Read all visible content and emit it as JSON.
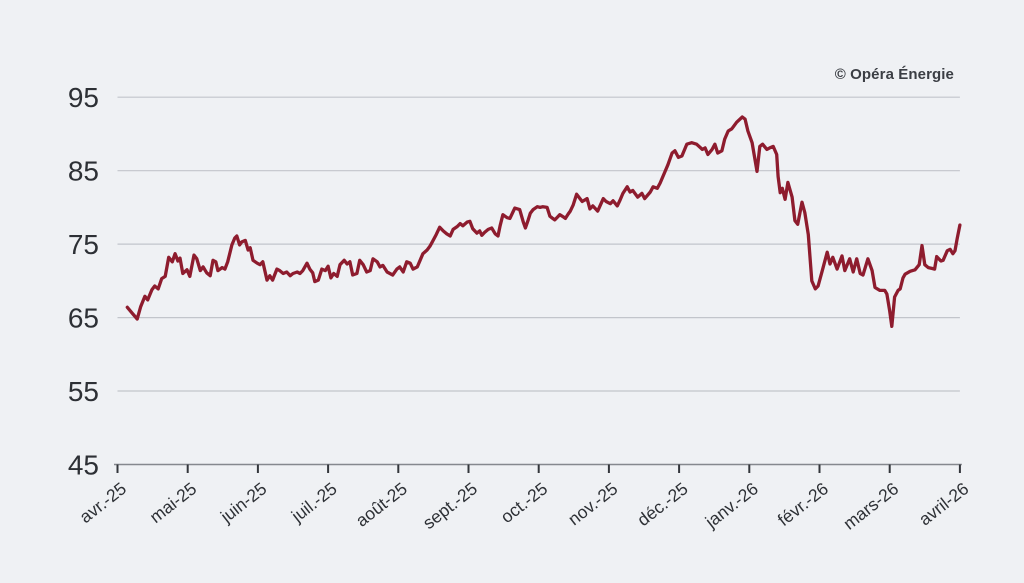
{
  "chart_data": {
    "type": "line",
    "title": "",
    "legend": "none",
    "grid": "horizontal",
    "categories": [
      "avr.-25",
      "mai-25",
      "juin-25",
      "juil.-25",
      "août-25",
      "sept.-25",
      "oct.-25",
      "nov.-25",
      "déc.-25",
      "janv.-26",
      "févr.-26",
      "mars-26",
      "avril-26"
    ],
    "y_tick_labels": [
      95,
      85,
      75,
      65,
      55,
      45
    ],
    "y_gridlines": [
      95,
      85,
      75,
      65,
      55
    ],
    "ylim": [
      45,
      97
    ],
    "xlim_months": [
      0,
      12
    ],
    "annotations": {
      "copyright": "© Opéra Énergie"
    },
    "colors": {
      "line": "#8e1c2e",
      "grid": "#c2c5cb",
      "axis": "#85888e",
      "tick": "#33363b",
      "label": "#2d3035",
      "background": "#eff1f4"
    },
    "points": [
      [
        0.14,
        66.4
      ],
      [
        0.21,
        65.6
      ],
      [
        0.28,
        64.8
      ],
      [
        0.33,
        66.5
      ],
      [
        0.39,
        67.9
      ],
      [
        0.43,
        67.4
      ],
      [
        0.49,
        68.8
      ],
      [
        0.53,
        69.3
      ],
      [
        0.58,
        68.9
      ],
      [
        0.63,
        70.3
      ],
      [
        0.68,
        70.6
      ],
      [
        0.73,
        73.2
      ],
      [
        0.78,
        72.6
      ],
      [
        0.82,
        73.7
      ],
      [
        0.86,
        72.7
      ],
      [
        0.89,
        73.1
      ],
      [
        0.93,
        71.0
      ],
      [
        0.99,
        71.5
      ],
      [
        1.03,
        70.6
      ],
      [
        1.09,
        73.5
      ],
      [
        1.13,
        73.0
      ],
      [
        1.18,
        71.4
      ],
      [
        1.22,
        71.9
      ],
      [
        1.27,
        71.1
      ],
      [
        1.32,
        70.7
      ],
      [
        1.36,
        72.8
      ],
      [
        1.4,
        72.6
      ],
      [
        1.43,
        71.4
      ],
      [
        1.49,
        71.8
      ],
      [
        1.53,
        71.6
      ],
      [
        1.57,
        72.6
      ],
      [
        1.63,
        74.9
      ],
      [
        1.67,
        75.8
      ],
      [
        1.7,
        76.1
      ],
      [
        1.74,
        74.9
      ],
      [
        1.77,
        75.3
      ],
      [
        1.82,
        75.5
      ],
      [
        1.86,
        74.2
      ],
      [
        1.89,
        74.5
      ],
      [
        1.93,
        72.8
      ],
      [
        1.99,
        72.4
      ],
      [
        2.03,
        72.2
      ],
      [
        2.07,
        72.6
      ],
      [
        2.13,
        70.1
      ],
      [
        2.17,
        70.7
      ],
      [
        2.21,
        70.1
      ],
      [
        2.27,
        71.6
      ],
      [
        2.31,
        71.4
      ],
      [
        2.36,
        71.0
      ],
      [
        2.41,
        71.2
      ],
      [
        2.46,
        70.7
      ],
      [
        2.5,
        71.0
      ],
      [
        2.56,
        71.2
      ],
      [
        2.6,
        71.0
      ],
      [
        2.64,
        71.4
      ],
      [
        2.7,
        72.4
      ],
      [
        2.74,
        71.6
      ],
      [
        2.78,
        71.1
      ],
      [
        2.81,
        69.9
      ],
      [
        2.86,
        70.1
      ],
      [
        2.91,
        71.6
      ],
      [
        2.96,
        71.4
      ],
      [
        3.0,
        72.0
      ],
      [
        3.04,
        70.4
      ],
      [
        3.08,
        71.0
      ],
      [
        3.13,
        70.6
      ],
      [
        3.17,
        72.2
      ],
      [
        3.23,
        72.8
      ],
      [
        3.27,
        72.3
      ],
      [
        3.31,
        72.6
      ],
      [
        3.35,
        70.8
      ],
      [
        3.41,
        71.0
      ],
      [
        3.45,
        72.8
      ],
      [
        3.5,
        72.2
      ],
      [
        3.55,
        71.2
      ],
      [
        3.6,
        71.4
      ],
      [
        3.64,
        73.0
      ],
      [
        3.7,
        72.6
      ],
      [
        3.74,
        71.9
      ],
      [
        3.78,
        72.1
      ],
      [
        3.84,
        71.2
      ],
      [
        3.88,
        71.0
      ],
      [
        3.92,
        70.8
      ],
      [
        3.98,
        71.6
      ],
      [
        4.02,
        71.9
      ],
      [
        4.07,
        71.2
      ],
      [
        4.12,
        72.6
      ],
      [
        4.17,
        72.4
      ],
      [
        4.21,
        71.6
      ],
      [
        4.27,
        71.9
      ],
      [
        4.31,
        72.8
      ],
      [
        4.35,
        73.7
      ],
      [
        4.41,
        74.2
      ],
      [
        4.45,
        74.7
      ],
      [
        4.49,
        75.4
      ],
      [
        4.54,
        76.3
      ],
      [
        4.59,
        77.3
      ],
      [
        4.64,
        76.8
      ],
      [
        4.69,
        76.4
      ],
      [
        4.74,
        76.1
      ],
      [
        4.78,
        77.0
      ],
      [
        4.84,
        77.4
      ],
      [
        4.88,
        77.8
      ],
      [
        4.92,
        77.5
      ],
      [
        4.98,
        78.0
      ],
      [
        5.02,
        78.1
      ],
      [
        5.06,
        77.1
      ],
      [
        5.12,
        76.5
      ],
      [
        5.16,
        76.8
      ],
      [
        5.19,
        76.2
      ],
      [
        5.23,
        76.6
      ],
      [
        5.28,
        77.0
      ],
      [
        5.33,
        77.2
      ],
      [
        5.38,
        76.4
      ],
      [
        5.42,
        76.1
      ],
      [
        5.45,
        77.5
      ],
      [
        5.49,
        79.0
      ],
      [
        5.55,
        78.6
      ],
      [
        5.59,
        78.5
      ],
      [
        5.63,
        79.3
      ],
      [
        5.66,
        79.9
      ],
      [
        5.7,
        79.8
      ],
      [
        5.73,
        79.7
      ],
      [
        5.78,
        78.0
      ],
      [
        5.81,
        77.2
      ],
      [
        5.85,
        78.3
      ],
      [
        5.88,
        79.2
      ],
      [
        5.92,
        79.7
      ],
      [
        5.98,
        80.1
      ],
      [
        6.02,
        80.0
      ],
      [
        6.06,
        80.1
      ],
      [
        6.12,
        80.0
      ],
      [
        6.16,
        78.8
      ],
      [
        6.2,
        78.5
      ],
      [
        6.23,
        78.3
      ],
      [
        6.27,
        78.7
      ],
      [
        6.3,
        79.0
      ],
      [
        6.35,
        78.7
      ],
      [
        6.38,
        78.5
      ],
      [
        6.42,
        79.1
      ],
      [
        6.45,
        79.5
      ],
      [
        6.49,
        80.3
      ],
      [
        6.54,
        81.8
      ],
      [
        6.62,
        80.8
      ],
      [
        6.69,
        81.2
      ],
      [
        6.73,
        79.8
      ],
      [
        6.77,
        80.2
      ],
      [
        6.84,
        79.5
      ],
      [
        6.92,
        81.2
      ],
      [
        6.96,
        80.8
      ],
      [
        7.02,
        80.5
      ],
      [
        7.06,
        80.9
      ],
      [
        7.12,
        80.2
      ],
      [
        7.16,
        81.0
      ],
      [
        7.2,
        81.9
      ],
      [
        7.26,
        82.8
      ],
      [
        7.3,
        82.1
      ],
      [
        7.34,
        82.3
      ],
      [
        7.41,
        81.4
      ],
      [
        7.47,
        81.9
      ],
      [
        7.51,
        81.2
      ],
      [
        7.59,
        82.1
      ],
      [
        7.63,
        82.8
      ],
      [
        7.69,
        82.6
      ],
      [
        7.73,
        83.3
      ],
      [
        7.8,
        84.9
      ],
      [
        7.84,
        85.8
      ],
      [
        7.9,
        87.4
      ],
      [
        7.94,
        87.7
      ],
      [
        7.99,
        86.8
      ],
      [
        8.04,
        87.0
      ],
      [
        8.11,
        88.6
      ],
      [
        8.18,
        88.8
      ],
      [
        8.25,
        88.6
      ],
      [
        8.33,
        87.9
      ],
      [
        8.37,
        88.1
      ],
      [
        8.41,
        87.2
      ],
      [
        8.47,
        87.9
      ],
      [
        8.51,
        88.6
      ],
      [
        8.55,
        87.4
      ],
      [
        8.61,
        87.7
      ],
      [
        8.65,
        89.3
      ],
      [
        8.7,
        90.4
      ],
      [
        8.75,
        90.7
      ],
      [
        8.82,
        91.6
      ],
      [
        8.9,
        92.3
      ],
      [
        8.94,
        92.0
      ],
      [
        8.98,
        90.4
      ],
      [
        9.04,
        88.8
      ],
      [
        9.11,
        84.9
      ],
      [
        9.15,
        88.3
      ],
      [
        9.19,
        88.6
      ],
      [
        9.25,
        87.9
      ],
      [
        9.29,
        88.1
      ],
      [
        9.34,
        88.3
      ],
      [
        9.39,
        87.2
      ],
      [
        9.41,
        84.2
      ],
      [
        9.44,
        82.0
      ],
      [
        9.47,
        82.6
      ],
      [
        9.51,
        81.1
      ],
      [
        9.55,
        83.4
      ],
      [
        9.61,
        81.4
      ],
      [
        9.65,
        78.2
      ],
      [
        9.69,
        77.7
      ],
      [
        9.75,
        80.7
      ],
      [
        9.79,
        79.3
      ],
      [
        9.84,
        76.3
      ],
      [
        9.89,
        70.0
      ],
      [
        9.94,
        68.9
      ],
      [
        9.98,
        69.3
      ],
      [
        10.04,
        71.4
      ],
      [
        10.11,
        73.9
      ],
      [
        10.15,
        72.3
      ],
      [
        10.19,
        73.2
      ],
      [
        10.25,
        71.6
      ],
      [
        10.32,
        73.4
      ],
      [
        10.36,
        71.4
      ],
      [
        10.43,
        73.0
      ],
      [
        10.48,
        71.2
      ],
      [
        10.53,
        73.0
      ],
      [
        10.58,
        71.0
      ],
      [
        10.62,
        70.8
      ],
      [
        10.69,
        73.0
      ],
      [
        10.75,
        71.4
      ],
      [
        10.79,
        69.1
      ],
      [
        10.86,
        68.7
      ],
      [
        10.93,
        68.7
      ],
      [
        10.96,
        68.2
      ],
      [
        11.0,
        65.9
      ],
      [
        11.03,
        63.8
      ],
      [
        11.07,
        67.8
      ],
      [
        11.12,
        68.7
      ],
      [
        11.15,
        68.9
      ],
      [
        11.19,
        70.4
      ],
      [
        11.22,
        70.9
      ],
      [
        11.29,
        71.3
      ],
      [
        11.36,
        71.5
      ],
      [
        11.42,
        72.2
      ],
      [
        11.46,
        74.8
      ],
      [
        11.5,
        72.2
      ],
      [
        11.55,
        71.8
      ],
      [
        11.6,
        71.7
      ],
      [
        11.64,
        71.6
      ],
      [
        11.67,
        73.3
      ],
      [
        11.73,
        72.7
      ],
      [
        11.76,
        72.8
      ],
      [
        11.82,
        74.1
      ],
      [
        11.86,
        74.3
      ],
      [
        11.9,
        73.7
      ],
      [
        11.93,
        74.1
      ],
      [
        11.96,
        75.7
      ],
      [
        12.0,
        77.6
      ]
    ]
  }
}
